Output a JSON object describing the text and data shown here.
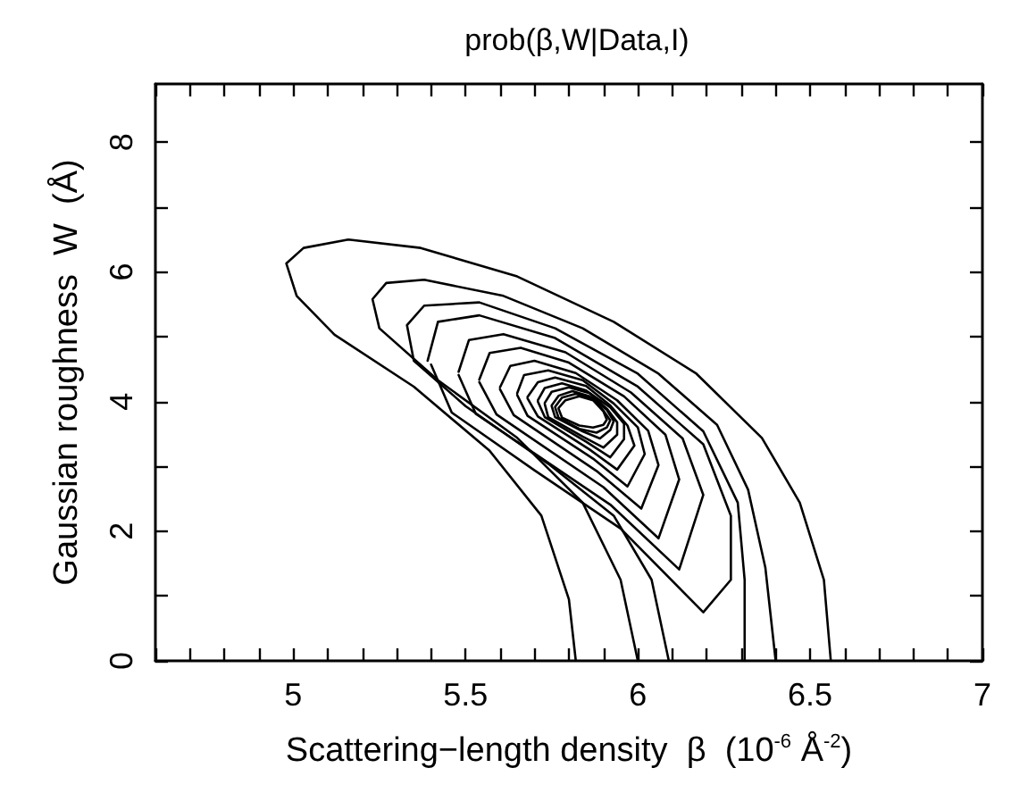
{
  "chart_data": {
    "type": "line",
    "title": "prob(β,W|Data,I)",
    "xlabel": "Scattering−length density  β  (10$^{-6}$ Å$^{-2}$)",
    "ylabel": "Gaussian roughness  W  (Å)",
    "xlim": [
      4.6,
      7
    ],
    "ylim": [
      0,
      8.9
    ],
    "xticks": [
      {
        "value": 4.6,
        "label": null
      },
      {
        "value": 4.7,
        "label": null
      },
      {
        "value": 4.8,
        "label": null
      },
      {
        "value": 4.9,
        "label": null
      },
      5,
      {
        "value": 5.1,
        "label": null
      },
      {
        "value": 5.2,
        "label": null
      },
      {
        "value": 5.3,
        "label": null
      },
      {
        "value": 5.4,
        "label": null
      },
      5.5,
      {
        "value": 5.6,
        "label": null
      },
      {
        "value": 5.7,
        "label": null
      },
      {
        "value": 5.8,
        "label": null
      },
      {
        "value": 5.9,
        "label": null
      },
      6,
      {
        "value": 6.1,
        "label": null
      },
      {
        "value": 6.2,
        "label": null
      },
      {
        "value": 6.3,
        "label": null
      },
      {
        "value": 6.4,
        "label": null
      },
      6.5,
      {
        "value": 6.6,
        "label": null
      },
      {
        "value": 6.7,
        "label": null
      },
      {
        "value": 6.8,
        "label": null
      },
      {
        "value": 6.9,
        "label": null
      },
      7
    ],
    "yticks": [
      0,
      {
        "value": 1,
        "label": null
      },
      2,
      {
        "value": 3,
        "label": null
      },
      4,
      {
        "value": 5,
        "label": null
      },
      6,
      {
        "value": 7,
        "label": null
      },
      8
    ],
    "grid": false,
    "marker": "none",
    "line_style": "solid",
    "series": [
      {
        "color": "#000000",
        "x": [
          5.82,
          5.8,
          5.72,
          5.57,
          5.35,
          5.12,
          5.01,
          4.98,
          5.03,
          5.16,
          5.37,
          5.65,
          5.93,
          6.17,
          6.36,
          6.47,
          6.54,
          6.56
        ],
        "values": [
          0,
          0.95,
          2.24,
          3.24,
          4.23,
          5.03,
          5.63,
          6.13,
          6.37,
          6.5,
          6.37,
          5.93,
          5.23,
          4.43,
          3.44,
          2.44,
          1.25,
          0
        ]
      },
      {
        "color": "#000000",
        "x": [
          6.0,
          5.95,
          5.84,
          5.65,
          5.42,
          5.25,
          5.23,
          5.27,
          5.38,
          5.61,
          5.84,
          6.06,
          6.23,
          6.32,
          6.37,
          6.4
        ],
        "values": [
          0,
          1.25,
          2.44,
          3.44,
          4.33,
          5.13,
          5.58,
          5.83,
          5.88,
          5.63,
          5.13,
          4.43,
          3.64,
          2.64,
          1.44,
          0
        ]
      },
      {
        "color": "#000000",
        "x": [
          6.09,
          6.04,
          5.93,
          5.74,
          5.5,
          5.35,
          5.33,
          5.38,
          5.54,
          5.76,
          6.0,
          6.19,
          6.29,
          6.31,
          6.31
        ],
        "values": [
          0,
          1.25,
          2.24,
          3.04,
          3.93,
          4.63,
          5.18,
          5.48,
          5.53,
          5.13,
          4.43,
          3.54,
          2.44,
          1.25,
          0
        ]
      },
      {
        "color": "#000000",
        "x": [
          5.39,
          5.42,
          5.54,
          5.76,
          6.0,
          6.19,
          6.27,
          6.27,
          6.19,
          5.95,
          5.7,
          5.46,
          5.4
        ],
        "values": [
          4.63,
          5.23,
          5.33,
          4.98,
          4.23,
          3.34,
          2.24,
          1.25,
          0.75,
          2.04,
          2.94,
          3.83,
          4.57
        ]
      },
      {
        "color": "#000000",
        "x": [
          5.48,
          5.51,
          5.61,
          5.79,
          5.98,
          6.13,
          6.19,
          6.12,
          5.92,
          5.53,
          5.48
        ],
        "values": [
          4.46,
          4.95,
          5.04,
          4.76,
          4.14,
          3.43,
          2.56,
          1.41,
          2.41,
          3.81,
          4.41
        ]
      },
      {
        "color": "#000000",
        "x": [
          5.54,
          5.57,
          5.66,
          5.8,
          5.96,
          6.08,
          6.12,
          6.06,
          5.9,
          5.59,
          5.54
        ],
        "values": [
          4.34,
          4.75,
          4.83,
          4.6,
          4.08,
          3.49,
          2.8,
          1.89,
          2.68,
          3.8,
          4.3
        ]
      },
      {
        "color": "#000000",
        "x": [
          5.6,
          5.63,
          5.7,
          5.82,
          5.94,
          6.03,
          6.06,
          6.01,
          5.88,
          5.64,
          5.6
        ],
        "values": [
          4.22,
          4.55,
          4.63,
          4.44,
          4.02,
          3.55,
          3.02,
          2.35,
          2.93,
          3.79,
          4.19
        ]
      },
      {
        "color": "#000000",
        "x": [
          5.65,
          5.67,
          5.74,
          5.84,
          5.93,
          6.0,
          6.02,
          5.97,
          5.87,
          5.68,
          5.65
        ],
        "values": [
          4.13,
          4.41,
          4.48,
          4.33,
          3.97,
          3.6,
          3.19,
          2.69,
          3.12,
          3.78,
          4.1
        ]
      },
      {
        "color": "#000000",
        "x": [
          5.68,
          5.71,
          5.76,
          5.85,
          5.92,
          5.97,
          5.99,
          5.94,
          5.86,
          5.71,
          5.68
        ],
        "values": [
          4.07,
          4.3,
          4.37,
          4.24,
          3.94,
          3.63,
          3.32,
          2.95,
          3.26,
          3.77,
          4.05
        ]
      },
      {
        "color": "#000000",
        "x": [
          5.71,
          5.73,
          5.78,
          5.85,
          5.92,
          5.96,
          5.96,
          5.92,
          5.85,
          5.73,
          5.71
        ],
        "values": [
          4.02,
          4.21,
          4.28,
          4.17,
          3.91,
          3.66,
          3.42,
          3.14,
          3.38,
          3.76,
          4.0
        ]
      },
      {
        "color": "#000000",
        "x": [
          5.73,
          5.75,
          5.8,
          5.86,
          5.91,
          5.94,
          5.94,
          5.9,
          5.84,
          5.74,
          5.73
        ],
        "values": [
          3.98,
          4.15,
          4.22,
          4.13,
          3.89,
          3.68,
          3.49,
          3.29,
          3.46,
          3.76,
          3.96
        ]
      },
      {
        "color": "#000000",
        "x": [
          5.75,
          5.77,
          5.81,
          5.86,
          5.91,
          5.93,
          5.92,
          5.89,
          5.84,
          5.76,
          5.75
        ],
        "values": [
          3.94,
          4.09,
          4.16,
          4.08,
          3.87,
          3.7,
          3.56,
          3.43,
          3.54,
          3.76,
          3.93
        ]
      },
      {
        "color": "#000000",
        "x": [
          5.76,
          5.78,
          5.82,
          5.87,
          5.9,
          5.92,
          5.91,
          5.88,
          5.83,
          5.77,
          5.76
        ],
        "values": [
          3.92,
          4.06,
          4.12,
          4.05,
          3.86,
          3.71,
          3.6,
          3.52,
          3.58,
          3.75,
          3.91
        ]
      },
      {
        "color": "#000000",
        "x": [
          5.77,
          5.79,
          5.83,
          5.87,
          5.9,
          5.91,
          5.9,
          5.87,
          5.83,
          5.78,
          5.77
        ],
        "values": [
          3.9,
          4.02,
          4.08,
          4.02,
          3.85,
          3.72,
          3.64,
          3.6,
          3.63,
          3.75,
          3.89
        ]
      }
    ]
  }
}
